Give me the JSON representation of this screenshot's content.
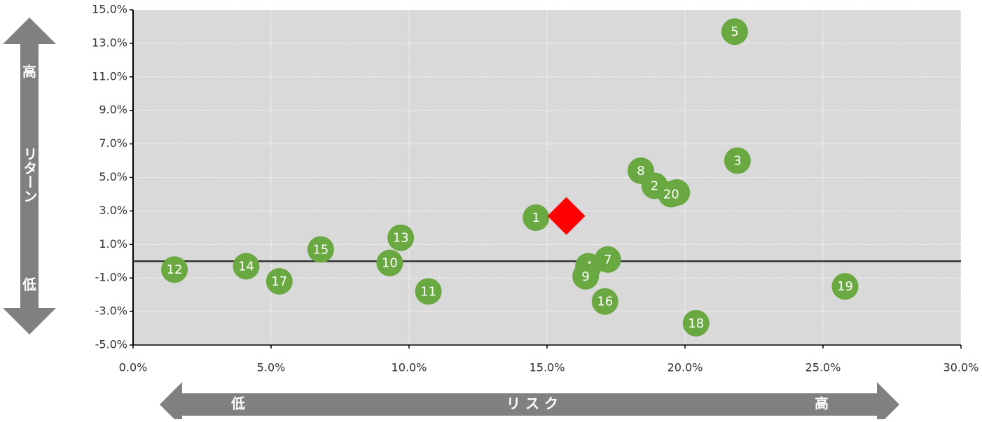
{
  "chart_data": {
    "type": "scatter",
    "xlim": [
      0,
      30
    ],
    "xticks": [
      {
        "value": 0,
        "label": "0.0%"
      },
      {
        "value": 5,
        "label": "5.0%"
      },
      {
        "value": 10,
        "label": "10.0%"
      },
      {
        "value": 15,
        "label": "15.0%"
      },
      {
        "value": 20,
        "label": "20.0%"
      },
      {
        "value": 25,
        "label": "25.0%"
      },
      {
        "value": 30,
        "label": "30.0%"
      }
    ],
    "ylim": [
      -5,
      15
    ],
    "yticks": [
      {
        "value": -5,
        "label": "-5.0%"
      },
      {
        "value": -3,
        "label": "-3.0%"
      },
      {
        "value": -1,
        "label": "-1.0%"
      },
      {
        "value": 1,
        "label": "1.0%"
      },
      {
        "value": 3,
        "label": "3.0%"
      },
      {
        "value": 5,
        "label": "5.0%"
      },
      {
        "value": 7,
        "label": "7.0%"
      },
      {
        "value": 9,
        "label": "9.0%"
      },
      {
        "value": 11,
        "label": "11.0%"
      },
      {
        "value": 13,
        "label": "13.0%"
      },
      {
        "value": 15,
        "label": "15.0%"
      }
    ],
    "grid": true,
    "series": [
      {
        "color": "#6aa842",
        "marker": "circle",
        "labels": [
          "1",
          "2",
          "3",
          "4",
          "5",
          "6",
          "7",
          "8",
          "9",
          "10",
          "11",
          "12",
          "13",
          "14",
          "15",
          "16",
          "17",
          "18",
          "19",
          "20"
        ],
        "x": [
          14.6,
          18.9,
          21.9,
          16.5,
          21.8,
          19.7,
          17.2,
          18.4,
          16.4,
          9.3,
          10.7,
          1.5,
          9.7,
          4.1,
          6.8,
          17.1,
          5.3,
          20.4,
          25.8,
          19.5
        ],
        "values": [
          2.6,
          4.5,
          6.0,
          -0.3,
          13.7,
          4.1,
          0.1,
          5.4,
          -0.9,
          -0.1,
          -1.8,
          -0.5,
          1.4,
          -0.3,
          0.7,
          -2.4,
          -1.2,
          -3.7,
          -1.5,
          4.0
        ]
      },
      {
        "color": "#ff0000",
        "marker": "diamond",
        "x": [
          15.7
        ],
        "values": [
          2.7
        ]
      }
    ],
    "y_arrow": {
      "high": "高",
      "label": "リターン",
      "low": "低"
    },
    "x_arrow": {
      "low": "低",
      "label": "リ ス ク",
      "high": "高"
    }
  }
}
